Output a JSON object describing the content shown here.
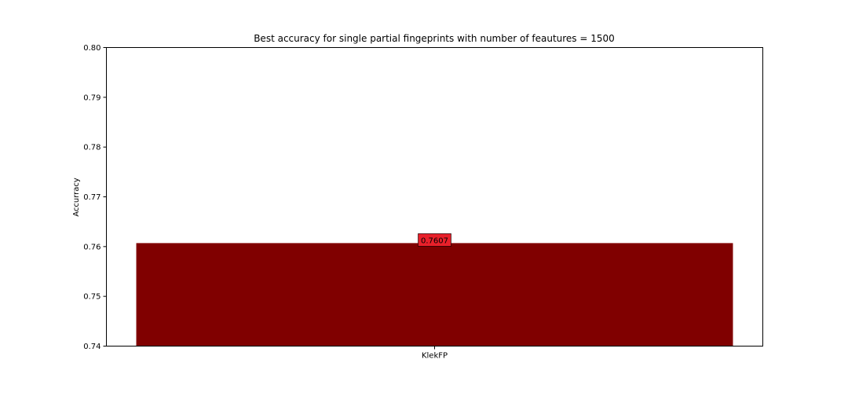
{
  "chart_data": {
    "type": "bar",
    "title": "Best accuracy for single partial fingeprints with number of feautures = 1500",
    "xlabel": "",
    "ylabel": "Accurracy",
    "categories": [
      "KlekFP"
    ],
    "values": [
      0.7607
    ],
    "data_labels": [
      "0.7607"
    ],
    "ylim": [
      0.74,
      0.8
    ],
    "yticks": [
      0.74,
      0.75,
      0.76,
      0.77,
      0.78,
      0.79,
      0.8
    ],
    "ytick_labels": [
      "0.74",
      "0.75",
      "0.76",
      "0.77",
      "0.78",
      "0.79",
      "0.80"
    ],
    "grid": false,
    "bar_color": "#800000",
    "label_box_color": "#e8202a"
  }
}
